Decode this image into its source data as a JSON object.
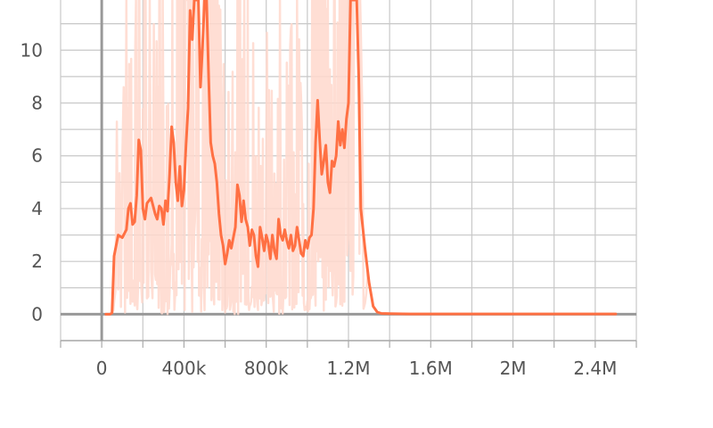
{
  "chart_data": {
    "type": "line",
    "title": "",
    "xlabel": "",
    "ylabel": "",
    "xlim": [
      -200000,
      2600000
    ],
    "ylim": [
      -1,
      11.9
    ],
    "x_ticks": [
      0,
      400000,
      800000,
      1200000,
      1600000,
      2000000,
      2400000
    ],
    "x_tick_labels": [
      "0",
      "400k",
      "800k",
      "1.2M",
      "1.6M",
      "2M",
      "2.4M"
    ],
    "y_ticks": [
      0,
      2,
      4,
      6,
      8,
      10
    ],
    "y_tick_labels": [
      "0",
      "2",
      "4",
      "6",
      "8",
      "10"
    ],
    "grid": true,
    "colors": {
      "smoothed": "#ff7043",
      "raw": "#ffd8cc",
      "grid": "#c8c8c8",
      "axis": "#999999"
    },
    "series": [
      {
        "role": "smoothed",
        "x": [
          20000,
          40000,
          50000,
          60000,
          80000,
          100000,
          120000,
          130000,
          140000,
          150000,
          160000,
          170000,
          180000,
          190000,
          200000,
          210000,
          220000,
          240000,
          260000,
          270000,
          280000,
          290000,
          300000,
          310000,
          320000,
          330000,
          340000,
          350000,
          360000,
          370000,
          380000,
          390000,
          400000,
          410000,
          420000,
          430000,
          440000,
          450000,
          460000,
          470000,
          480000,
          490000,
          500000,
          510000,
          520000,
          530000,
          540000,
          550000,
          560000,
          570000,
          580000,
          590000,
          600000,
          610000,
          620000,
          630000,
          640000,
          650000,
          660000,
          670000,
          680000,
          690000,
          700000,
          710000,
          720000,
          730000,
          740000,
          750000,
          760000,
          770000,
          780000,
          790000,
          800000,
          810000,
          820000,
          830000,
          840000,
          850000,
          860000,
          870000,
          880000,
          890000,
          900000,
          910000,
          920000,
          930000,
          940000,
          950000,
          960000,
          970000,
          980000,
          990000,
          1000000,
          1010000,
          1020000,
          1030000,
          1040000,
          1050000,
          1060000,
          1070000,
          1080000,
          1090000,
          1100000,
          1110000,
          1120000,
          1130000,
          1140000,
          1150000,
          1160000,
          1170000,
          1180000,
          1190000,
          1200000,
          1210000,
          1220000,
          1230000,
          1240000,
          1250000,
          1260000,
          1280000,
          1300000,
          1320000,
          1340000,
          1360000,
          1400000,
          1500000,
          1600000,
          1700000,
          1800000,
          1900000,
          2000000,
          2100000,
          2200000,
          2300000,
          2400000,
          2500000
        ],
        "y": [
          0,
          0,
          0.05,
          2.2,
          3.0,
          2.9,
          3.2,
          4.0,
          4.2,
          3.4,
          3.5,
          4.5,
          6.6,
          6.2,
          4.0,
          3.6,
          4.2,
          4.4,
          3.8,
          3.6,
          4.1,
          4.0,
          3.4,
          4.3,
          3.9,
          5.3,
          7.1,
          6.5,
          5.0,
          4.3,
          5.6,
          4.1,
          4.7,
          6.4,
          7.8,
          11.5,
          10.4,
          11.9,
          11.9,
          11.9,
          8.6,
          10.1,
          11.9,
          11.9,
          9.0,
          6.5,
          6.0,
          5.7,
          5.0,
          3.8,
          3.0,
          2.6,
          1.9,
          2.3,
          2.8,
          2.5,
          2.9,
          3.3,
          4.9,
          4.5,
          3.5,
          4.3,
          3.6,
          3.3,
          2.6,
          3.2,
          3.0,
          2.2,
          1.8,
          3.3,
          2.9,
          2.4,
          3.0,
          2.7,
          2.1,
          3.0,
          2.4,
          2.1,
          3.6,
          3.0,
          2.8,
          3.2,
          2.8,
          2.5,
          3.0,
          2.4,
          2.6,
          3.3,
          2.8,
          2.3,
          2.2,
          2.8,
          2.5,
          2.9,
          3.0,
          4.0,
          6.5,
          8.1,
          6.6,
          5.3,
          5.8,
          6.4,
          5.0,
          4.6,
          5.8,
          5.6,
          6.0,
          7.3,
          6.4,
          7.0,
          6.3,
          7.4,
          8.0,
          11.9,
          11.9,
          11.9,
          11.9,
          9.0,
          4.0,
          2.5,
          1.2,
          0.3,
          0.08,
          0.03,
          0.02,
          0.01,
          0.01,
          0.01,
          0.01,
          0.01,
          0.01,
          0.01,
          0.01,
          0.01,
          0.01,
          0.01
        ]
      }
    ]
  }
}
